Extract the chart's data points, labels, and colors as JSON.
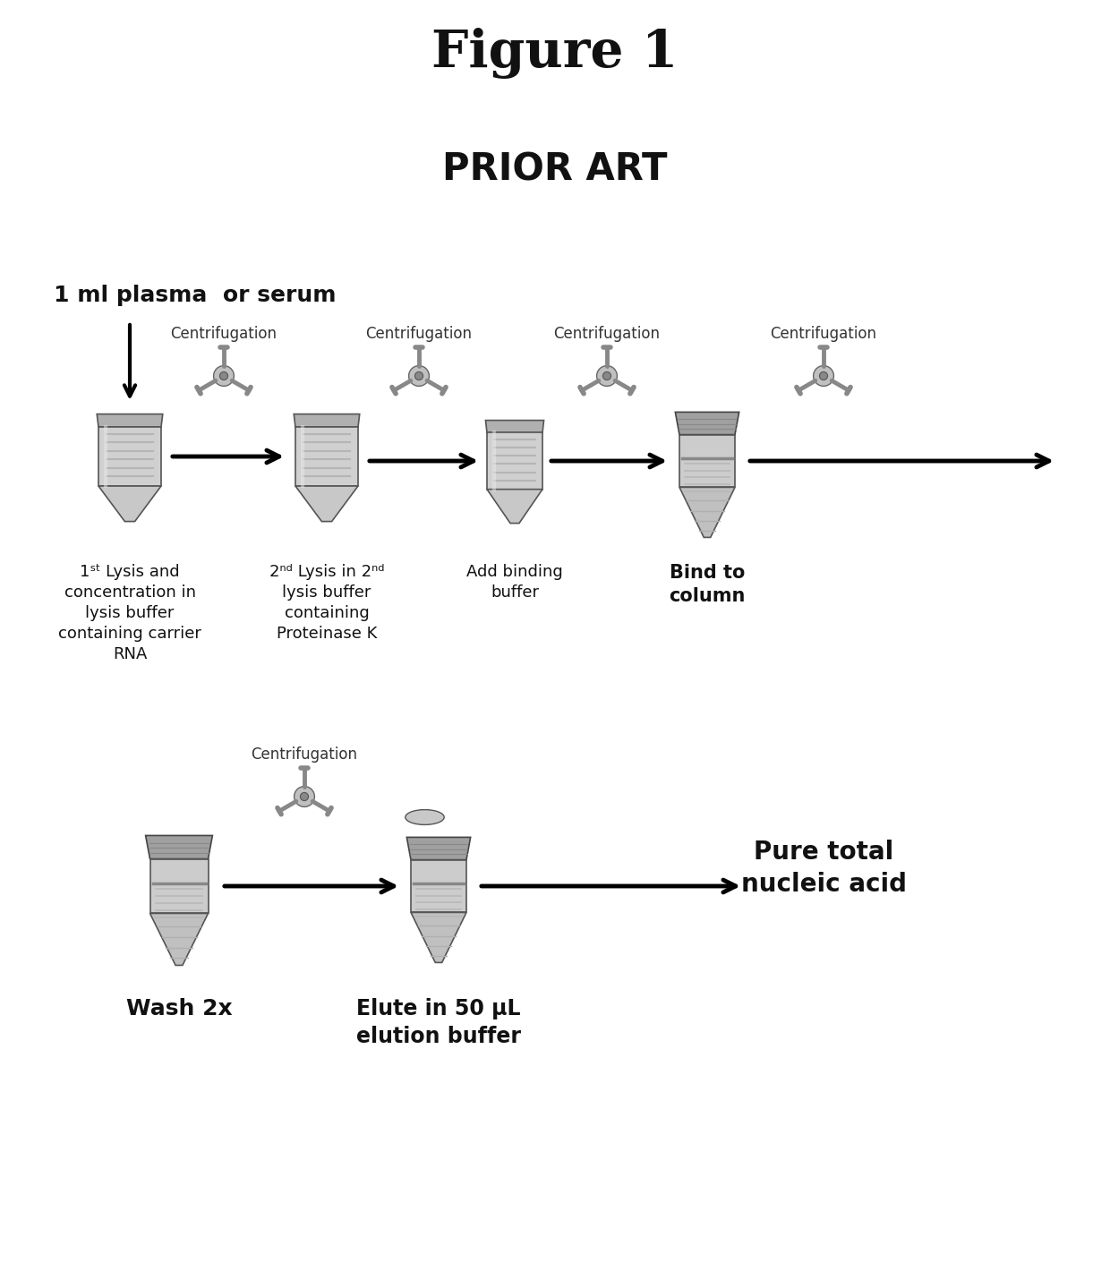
{
  "title": "Figure 1",
  "subtitle": "PRIOR ART",
  "sample_label": "1 ml plasma  or serum",
  "background_color": "#ffffff",
  "text_color": "#111111",
  "centrifugation_label": "Centrifugation",
  "row1_labels": [
    "1st Lysis and\nconcentration in\nlysis buffer\ncontaining carrier\nRNA",
    "2nd Lysis in 2nd\nlysis buffer\ncontaining\nProteinase K",
    "Add binding\nbuffer",
    "Bind to\ncolumn"
  ],
  "row1_bold": [
    false,
    false,
    false,
    true
  ],
  "row2_labels": [
    "Wash 2x",
    "Elute in 50 μL\nelution buffer",
    "Pure total\nnucleic acid"
  ],
  "row2_bold": [
    true,
    true,
    true
  ]
}
